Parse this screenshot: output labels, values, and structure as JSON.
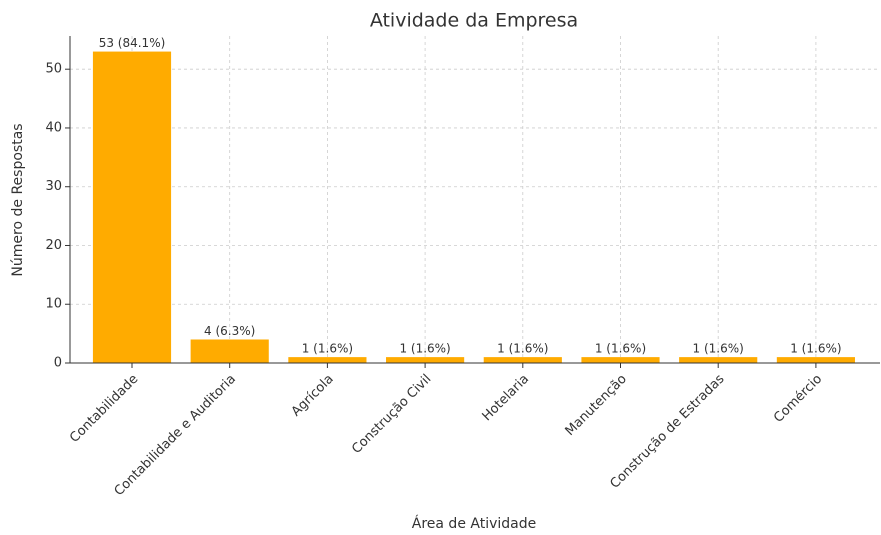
{
  "chart_data": {
    "type": "bar",
    "title": "Atividade da Empresa",
    "x_label": "Área de Atividade",
    "y_label": "Número de Respostas",
    "categories": [
      "Contabilidade",
      "Contabilidade e Auditoria",
      "Agrícola",
      "Construção Civil",
      "Hotelaria",
      "Manutenção",
      "Construção de Estradas",
      "Comércio"
    ],
    "values": [
      53,
      4,
      1,
      1,
      1,
      1,
      1,
      1
    ],
    "value_labels": [
      "53 (84.1%)",
      "4 (6.3%)",
      "1 (1.6%)",
      "1 (1.6%)",
      "1 (1.6%)",
      "1 (1.6%)",
      "1 (1.6%)",
      "1 (1.6%)"
    ],
    "color": "#ffab00",
    "ylim": [
      0,
      55.65
    ],
    "yticks": [
      0,
      10,
      20,
      30,
      40,
      50
    ],
    "grid": true
  }
}
